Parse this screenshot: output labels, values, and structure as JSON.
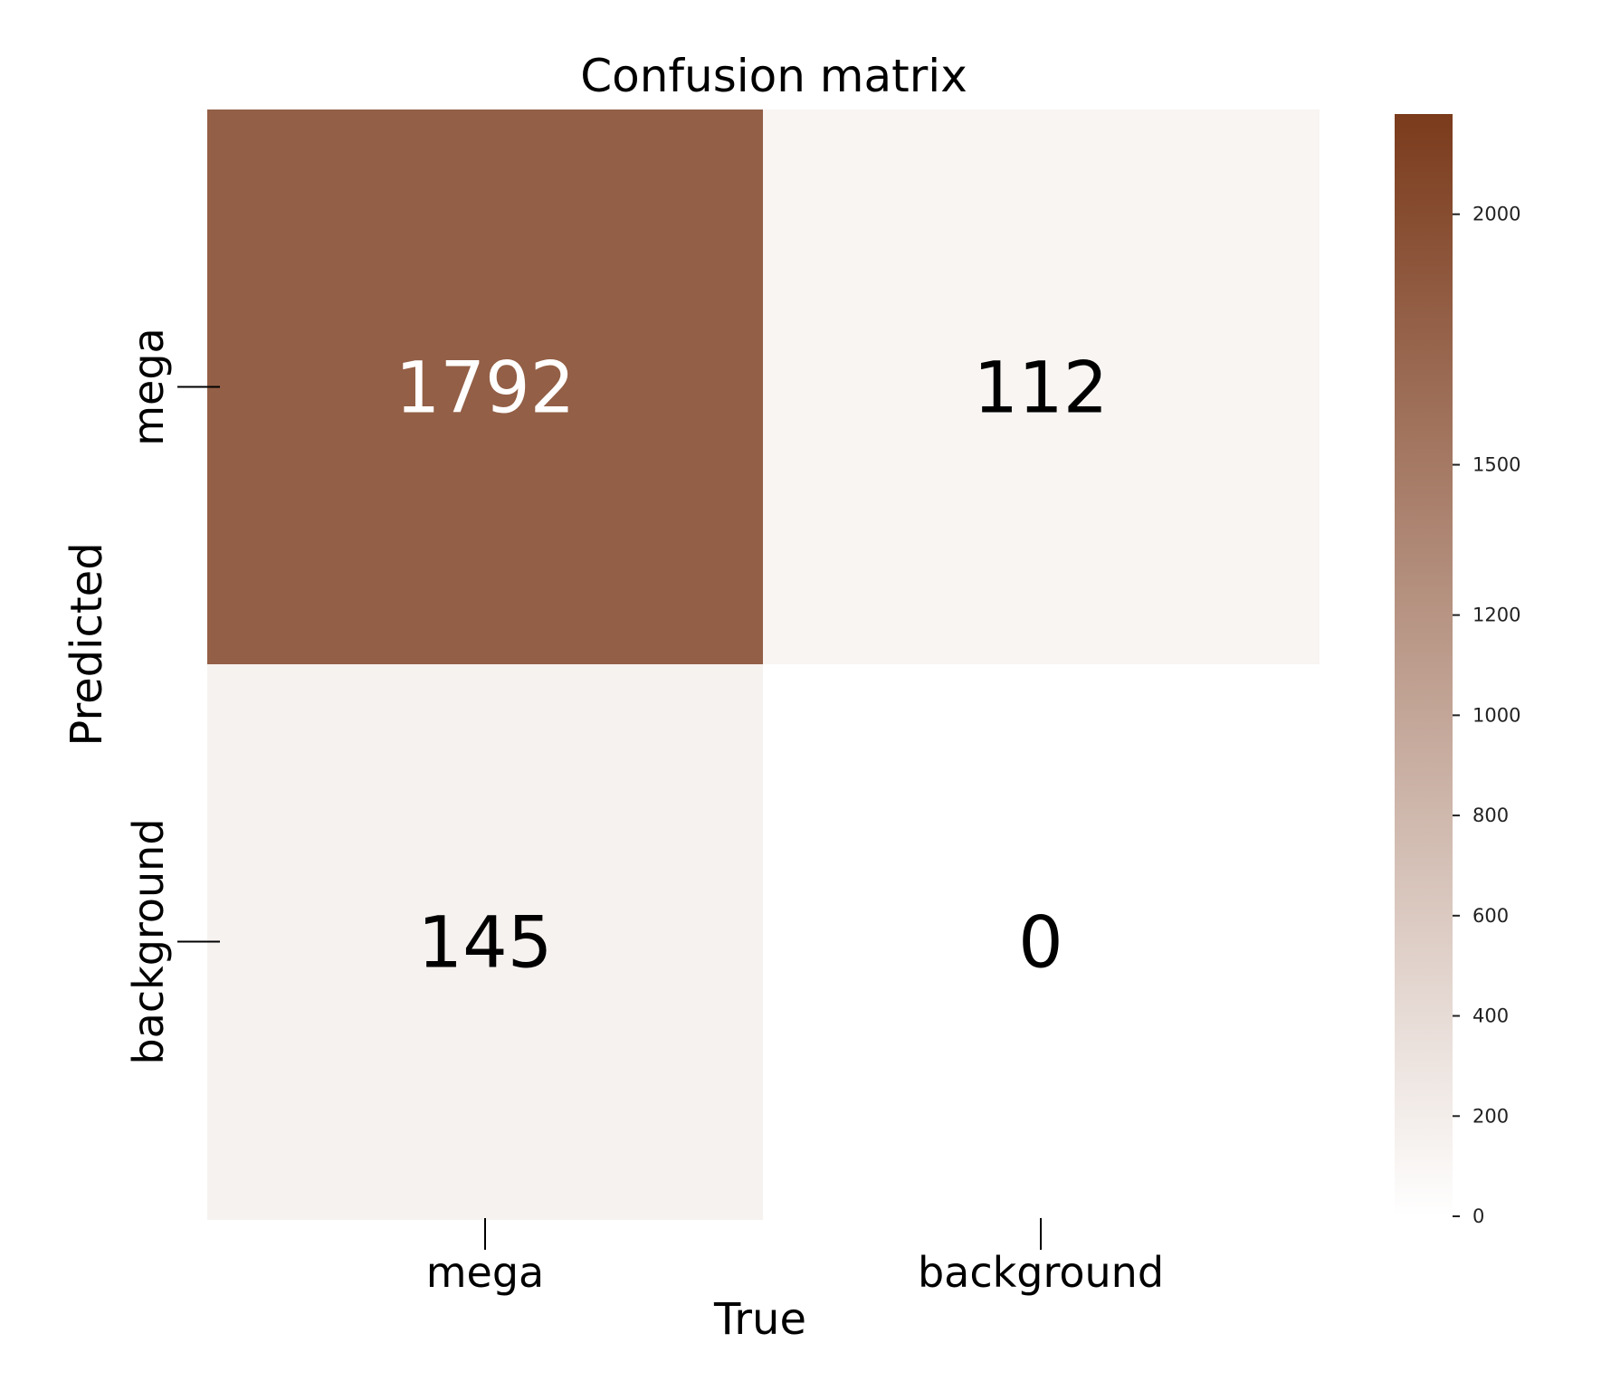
{
  "chart_data": {
    "type": "heatmap",
    "title": "Confusion matrix",
    "xlabel": "True",
    "ylabel": "Predicted",
    "x_categories": [
      "mega",
      "background"
    ],
    "y_categories": [
      "mega",
      "background"
    ],
    "values": [
      [
        1792,
        112
      ],
      [
        145,
        0
      ]
    ],
    "colorbar": {
      "range": [
        0,
        2200
      ],
      "ticks": [
        "0",
        "200",
        "400",
        "600",
        "800",
        "1000",
        "1200",
        "1500",
        "2000"
      ],
      "color_low": "#ffffff",
      "color_high": "#7b3b1c"
    }
  }
}
